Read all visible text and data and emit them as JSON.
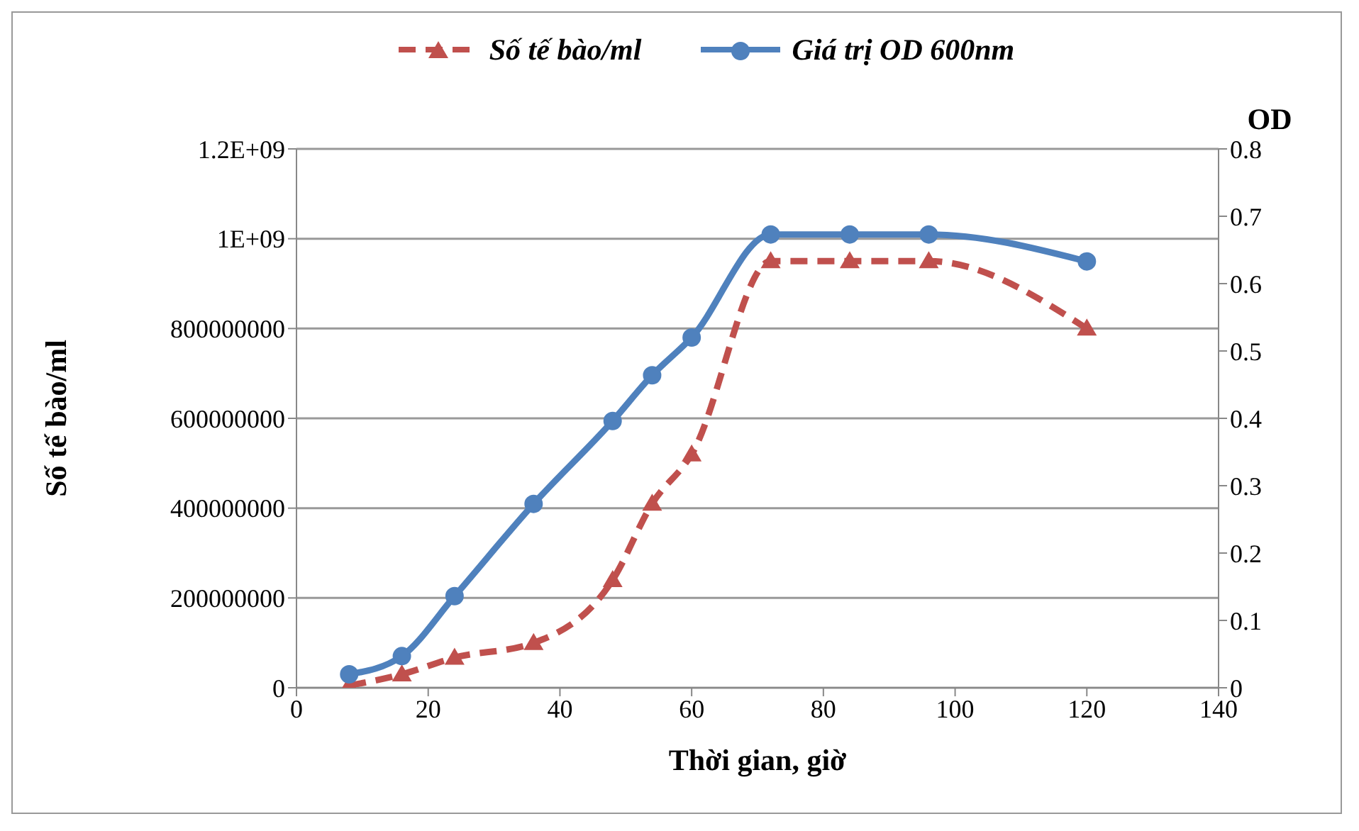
{
  "chart_data": {
    "type": "line",
    "xlabel": "Thời gian, giờ",
    "ylabel": "Số tế bào/ml",
    "y2label": "OD",
    "xlim": [
      0,
      140
    ],
    "xticks": [
      0,
      20,
      40,
      60,
      80,
      100,
      120,
      140
    ],
    "ylim": [
      0,
      1200000000
    ],
    "yticks": [
      0,
      200000000,
      400000000,
      600000000,
      800000000,
      {
        "value": 1000000000,
        "label": "1E+09"
      },
      {
        "value": 1200000000,
        "label": "1.2E+09"
      }
    ],
    "y2lim": [
      0,
      0.8
    ],
    "y2ticks": [
      0,
      0.1,
      0.2,
      0.3,
      0.4,
      0.5,
      0.6,
      0.7,
      0.8
    ],
    "grid": "y",
    "legend": "top",
    "series": [
      {
        "name": "Số tế bào/ml",
        "color": "#c0504d",
        "marker": "triangle",
        "line_style": "dashed",
        "x": [
          8,
          16,
          24,
          36,
          48,
          54,
          60,
          72,
          84,
          96,
          120
        ],
        "values": [
          5000000,
          30000000,
          67000000,
          100000000,
          240000000,
          410000000,
          520000000,
          950000000,
          950000000,
          950000000,
          800000000
        ]
      },
      {
        "name": "Giá trị OD 600nm",
        "color": "#4f81bd",
        "marker": "circle",
        "line_style": "solid",
        "axis": "y2",
        "x": [
          8,
          16,
          24,
          36,
          48,
          54,
          60,
          72,
          84,
          96,
          120
        ],
        "values": [
          0.02,
          0.047,
          0.136,
          0.273,
          0.396,
          0.464,
          0.52,
          0.673,
          0.673,
          0.673,
          0.633
        ]
      }
    ]
  }
}
